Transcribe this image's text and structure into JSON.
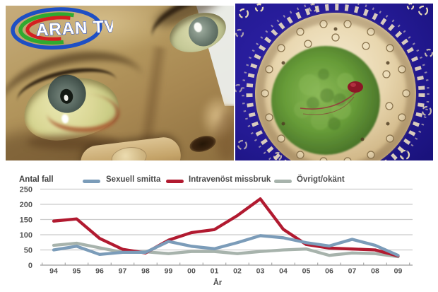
{
  "logo": {
    "text": "ARAN TV",
    "colors": {
      "outer_ring": "#1e4fc4",
      "middle_ring": "#2faa2f",
      "inner_ring": "#d42020",
      "text_fill": "#ffffff",
      "text_outline": "#2a52cc"
    }
  },
  "colors": {
    "virus_background": "#221a94",
    "photo_frame": "#ffffff"
  },
  "chart_data": {
    "type": "line",
    "ylabel_caption": "Antal fall",
    "xlabel": "År",
    "x_categories": [
      "94",
      "95",
      "96",
      "97",
      "98",
      "99",
      "00",
      "01",
      "02",
      "03",
      "04",
      "05",
      "06",
      "07",
      "08",
      "09"
    ],
    "yticks": [
      0,
      50,
      100,
      150,
      200,
      250
    ],
    "ylim": [
      0,
      250
    ],
    "grid": true,
    "legend_position": "top",
    "series": [
      {
        "name": "Sexuell smitta",
        "color": "#7b9cb9",
        "values": [
          50,
          62,
          35,
          42,
          42,
          78,
          62,
          54,
          74,
          97,
          90,
          74,
          63,
          85,
          65,
          32
        ]
      },
      {
        "name": "Intravenöst missbruk",
        "color": "#b11a30",
        "values": [
          145,
          152,
          88,
          52,
          40,
          82,
          107,
          117,
          163,
          218,
          118,
          68,
          56,
          53,
          50,
          30
        ]
      },
      {
        "name": "Övrigt/okänt",
        "color": "#a7b3ac",
        "values": [
          65,
          72,
          57,
          42,
          44,
          38,
          45,
          45,
          38,
          45,
          50,
          53,
          32,
          40,
          38,
          28
        ]
      }
    ]
  }
}
